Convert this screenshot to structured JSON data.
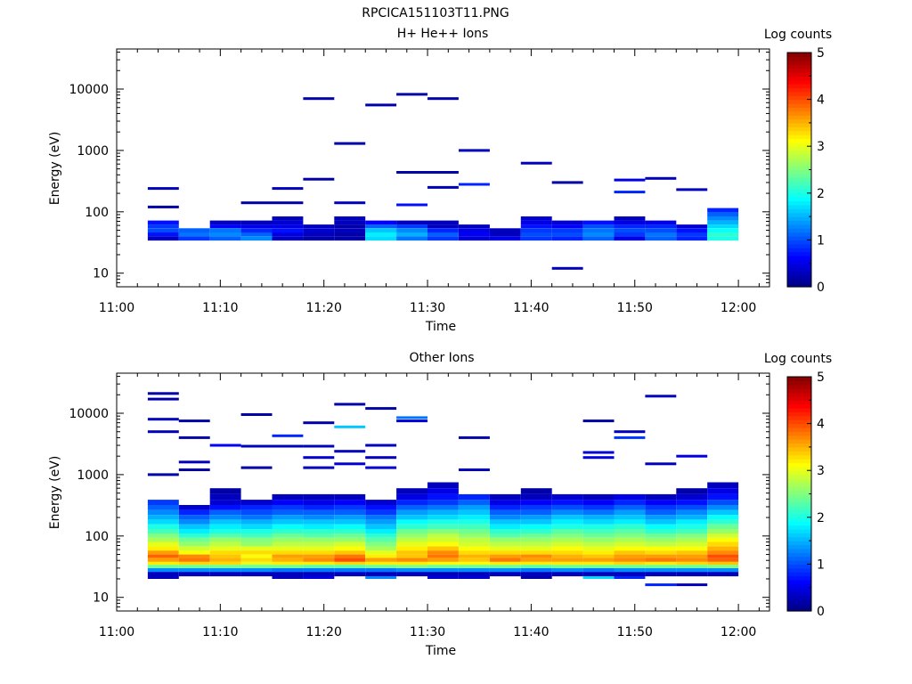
{
  "figure": {
    "title": "RPCICA151103T11.PNG"
  },
  "chart_data": [
    {
      "type": "heatmap",
      "title": "H+ He++ Ions",
      "xlabel": "Time",
      "ylabel": "Energy (eV)",
      "xlim": [
        "11:00",
        "12:03"
      ],
      "x_ticks": [
        "11:00",
        "11:10",
        "11:20",
        "11:30",
        "11:40",
        "11:50",
        "12:00"
      ],
      "y_scale": "log",
      "ylim": [
        6,
        45000
      ],
      "y_ticks": [
        "10",
        "100",
        "1000",
        "10000"
      ],
      "colorbar": {
        "label": "Log counts",
        "range": [
          0,
          5
        ],
        "ticks": [
          "0",
          "1",
          "2",
          "3",
          "4",
          "5"
        ]
      },
      "time_bins": [
        "11:03",
        "11:06",
        "11:09",
        "11:12",
        "11:15",
        "11:18",
        "11:21",
        "11:24",
        "11:27",
        "11:30",
        "11:33",
        "11:36",
        "11:39",
        "11:42",
        "11:45",
        "11:48",
        "11:51",
        "11:54",
        "11:57"
      ],
      "energy_bin_ranges": [
        [
          34,
          40
        ],
        [
          40,
          46
        ],
        [
          46,
          54
        ],
        [
          54,
          62
        ],
        [
          62,
          72
        ],
        [
          72,
          84
        ],
        [
          84,
          98
        ],
        [
          98,
          115
        ],
        [
          115,
          135
        ],
        [
          135,
          160
        ]
      ],
      "profiles": [
        [
          0.3,
          0.7,
          1.0,
          0.9,
          0.7
        ],
        [
          0.9,
          1.2,
          1.1
        ],
        [
          1.1,
          1.3,
          1.2,
          0.6,
          0.3
        ],
        [
          1.3,
          1.1,
          0.8,
          0.5,
          0.3
        ],
        [
          0.3,
          0.5,
          0.7,
          0.5,
          0.4,
          0.3
        ],
        [
          0.2,
          0.3,
          0.4,
          0.3
        ],
        [
          0.2,
          0.2,
          0.3,
          0.2,
          0.3,
          0.3
        ],
        [
          1.7,
          1.8,
          1.6,
          1.1,
          0.6
        ],
        [
          1.2,
          1.5,
          1.3,
          0.9,
          0.3
        ],
        [
          0.9,
          1.1,
          0.8,
          0.3,
          0.3
        ],
        [
          0.4,
          0.6,
          0.5,
          0.3
        ],
        [
          0.5,
          0.3,
          0.3
        ],
        [
          0.9,
          1.0,
          0.9,
          0.7,
          0.5,
          0.4
        ],
        [
          0.8,
          1.0,
          0.9,
          0.6,
          0.4
        ],
        [
          1.1,
          1.3,
          1.2,
          1.0,
          0.7
        ],
        [
          0.5,
          0.9,
          1.0,
          0.8,
          0.5,
          0.3
        ],
        [
          1.1,
          1.2,
          1.0,
          0.8,
          0.5
        ],
        [
          0.8,
          0.9,
          0.7,
          0.4
        ],
        [
          2.0,
          2.1,
          1.9,
          1.7,
          1.5,
          1.3,
          1.1,
          0.8
        ]
      ],
      "sparse_counts": [
        {
          "t": "11:03",
          "e": 240,
          "v": 0.3
        },
        {
          "t": "11:03",
          "e": 120,
          "v": 0.2
        },
        {
          "t": "11:12",
          "e": 140,
          "v": 0.2
        },
        {
          "t": "11:15",
          "e": 240,
          "v": 0.3
        },
        {
          "t": "11:15",
          "e": 140,
          "v": 0.2
        },
        {
          "t": "11:18",
          "e": 7000,
          "v": 0.2
        },
        {
          "t": "11:18",
          "e": 340,
          "v": 0.2
        },
        {
          "t": "11:21",
          "e": 1300,
          "v": 0.2
        },
        {
          "t": "11:21",
          "e": 140,
          "v": 0.3
        },
        {
          "t": "11:24",
          "e": 5500,
          "v": 0.2
        },
        {
          "t": "11:27",
          "e": 8200,
          "v": 0.2
        },
        {
          "t": "11:27",
          "e": 440,
          "v": 0.2
        },
        {
          "t": "11:27",
          "e": 130,
          "v": 0.7
        },
        {
          "t": "11:30",
          "e": 7000,
          "v": 0.2
        },
        {
          "t": "11:30",
          "e": 440,
          "v": 0.2
        },
        {
          "t": "11:30",
          "e": 250,
          "v": 0.3
        },
        {
          "t": "11:33",
          "e": 1000,
          "v": 0.3
        },
        {
          "t": "11:33",
          "e": 280,
          "v": 0.8
        },
        {
          "t": "11:39",
          "e": 620,
          "v": 0.3
        },
        {
          "t": "11:42",
          "e": 300,
          "v": 0.2
        },
        {
          "t": "11:42",
          "e": 12,
          "v": 0.3
        },
        {
          "t": "11:48",
          "e": 330,
          "v": 0.5
        },
        {
          "t": "11:48",
          "e": 210,
          "v": 0.8
        },
        {
          "t": "11:51",
          "e": 350,
          "v": 0.3
        },
        {
          "t": "11:54",
          "e": 230,
          "v": 0.3
        }
      ]
    },
    {
      "type": "heatmap",
      "title": "Other Ions",
      "xlabel": "Time",
      "ylabel": "Energy (eV)",
      "xlim": [
        "11:00",
        "12:03"
      ],
      "x_ticks": [
        "11:00",
        "11:10",
        "11:20",
        "11:30",
        "11:40",
        "11:50",
        "12:00"
      ],
      "y_scale": "log",
      "ylim": [
        6,
        45000
      ],
      "y_ticks": [
        "10",
        "100",
        "1000",
        "10000"
      ],
      "colorbar": {
        "label": "Log counts",
        "range": [
          0,
          5
        ],
        "ticks": [
          "0",
          "1",
          "2",
          "3",
          "4",
          "5"
        ]
      },
      "time_bins": [
        "11:03",
        "11:06",
        "11:09",
        "11:12",
        "11:15",
        "11:18",
        "11:21",
        "11:24",
        "11:27",
        "11:30",
        "11:33",
        "11:36",
        "11:39",
        "11:42",
        "11:45",
        "11:48",
        "11:51",
        "11:54",
        "11:57"
      ],
      "energy_bin_ranges": [
        [
          22,
          26
        ],
        [
          26,
          30
        ],
        [
          30,
          34
        ],
        [
          34,
          38
        ],
        [
          38,
          44
        ],
        [
          44,
          50
        ],
        [
          50,
          58
        ],
        [
          58,
          68
        ],
        [
          68,
          80
        ],
        [
          80,
          94
        ],
        [
          94,
          110
        ],
        [
          110,
          130
        ],
        [
          130,
          155
        ],
        [
          155,
          185
        ],
        [
          185,
          220
        ],
        [
          220,
          265
        ],
        [
          265,
          320
        ],
        [
          320,
          390
        ],
        [
          390,
          480
        ],
        [
          480,
          600
        ],
        [
          600,
          750
        ],
        [
          750,
          950
        ]
      ],
      "profiles": [
        [
          0.3,
          1.3,
          2.4,
          3.2,
          3.6,
          3.9,
          3.6,
          3.2,
          3.0,
          2.7,
          2.5,
          2.2,
          2.0,
          1.7,
          1.5,
          1.3,
          1.1,
          0.9
        ],
        [
          0.3,
          1.3,
          2.4,
          3.3,
          3.8,
          3.7,
          3.1,
          2.9,
          2.6,
          2.4,
          2.1,
          1.8,
          1.6,
          1.3,
          1.1,
          0.8,
          0.4
        ],
        [
          0.3,
          1.3,
          2.4,
          3.3,
          3.5,
          3.4,
          3.3,
          3.0,
          2.8,
          2.6,
          2.3,
          2.0,
          1.8,
          1.6,
          1.3,
          1.1,
          0.7,
          0.4,
          0.3,
          0.2
        ],
        [
          0.3,
          1.3,
          2.4,
          3.0,
          3.3,
          3.1,
          3.3,
          3.0,
          2.6,
          2.5,
          2.2,
          2.0,
          1.7,
          1.5,
          1.2,
          1.0,
          0.8,
          0.4
        ],
        [
          0.3,
          1.2,
          2.4,
          3.2,
          3.5,
          3.6,
          3.3,
          3.0,
          2.8,
          2.6,
          2.4,
          2.1,
          1.9,
          1.6,
          1.4,
          1.1,
          0.9,
          0.6,
          0.3
        ],
        [
          0.3,
          1.2,
          2.3,
          3.2,
          3.7,
          3.6,
          3.3,
          3.0,
          2.8,
          2.6,
          2.3,
          2.1,
          1.8,
          1.6,
          1.3,
          1.1,
          0.8,
          0.5,
          0.3
        ],
        [
          0.3,
          1.2,
          2.3,
          3.3,
          4.0,
          3.8,
          3.4,
          3.1,
          2.9,
          2.6,
          2.4,
          2.1,
          1.9,
          1.6,
          1.4,
          1.1,
          0.9,
          0.6,
          0.3
        ],
        [
          0.3,
          1.2,
          2.4,
          3.2,
          3.6,
          3.2,
          3.0,
          2.7,
          2.5,
          2.3,
          2.1,
          1.8,
          1.6,
          1.4,
          1.2,
          0.9,
          0.7,
          0.4
        ],
        [
          0.3,
          1.3,
          2.5,
          3.2,
          3.7,
          3.4,
          3.4,
          3.2,
          3.0,
          2.8,
          2.6,
          2.4,
          2.1,
          1.9,
          1.6,
          1.4,
          1.1,
          0.8,
          0.5,
          0.3
        ],
        [
          0.3,
          1.3,
          2.4,
          3.1,
          3.6,
          3.8,
          3.7,
          3.4,
          3.1,
          2.9,
          2.8,
          2.5,
          2.2,
          2.0,
          1.7,
          1.5,
          1.2,
          0.9,
          0.7,
          0.5,
          0.3
        ],
        [
          0.3,
          1.3,
          2.4,
          3.1,
          3.4,
          3.5,
          3.3,
          3.1,
          2.9,
          2.8,
          2.6,
          2.4,
          2.2,
          2.0,
          1.8,
          1.6,
          1.4,
          1.1,
          0.8
        ],
        [
          0.3,
          1.3,
          2.4,
          3.2,
          3.8,
          3.6,
          3.3,
          3.0,
          2.8,
          2.6,
          2.3,
          2.1,
          1.8,
          1.6,
          1.3,
          1.1,
          0.8,
          0.5,
          0.3
        ],
        [
          0.3,
          1.2,
          2.3,
          3.2,
          3.6,
          3.7,
          3.3,
          3.0,
          2.8,
          2.6,
          2.4,
          2.1,
          1.9,
          1.6,
          1.4,
          1.1,
          0.9,
          0.6,
          0.3,
          0.2
        ],
        [
          0.3,
          1.3,
          2.4,
          3.2,
          3.6,
          3.5,
          3.3,
          3.1,
          2.9,
          2.7,
          2.5,
          2.3,
          2.0,
          1.8,
          1.6,
          1.3,
          1.0,
          0.7,
          0.4
        ],
        [
          0.3,
          1.2,
          2.4,
          3.2,
          3.6,
          3.4,
          3.2,
          3.0,
          2.8,
          2.6,
          2.4,
          2.2,
          2.0,
          1.7,
          1.5,
          1.2,
          0.9,
          0.6,
          0.3
        ],
        [
          0.3,
          1.3,
          2.4,
          3.3,
          3.7,
          3.6,
          3.4,
          3.1,
          2.9,
          2.7,
          2.5,
          2.3,
          2.1,
          1.8,
          1.6,
          1.4,
          1.1,
          0.8,
          0.5
        ],
        [
          0.3,
          1.3,
          2.4,
          3.2,
          3.8,
          3.6,
          3.3,
          3.1,
          2.8,
          2.6,
          2.4,
          2.1,
          1.9,
          1.6,
          1.4,
          1.1,
          0.9,
          0.6,
          0.3
        ],
        [
          0.3,
          1.3,
          2.4,
          3.3,
          3.7,
          3.6,
          3.4,
          3.1,
          2.9,
          2.7,
          2.5,
          2.2,
          2.0,
          1.8,
          1.5,
          1.3,
          1.0,
          0.7,
          0.4,
          0.2
        ],
        [
          0.3,
          1.3,
          2.5,
          3.4,
          3.9,
          4.0,
          3.7,
          3.5,
          3.3,
          3.1,
          2.9,
          2.6,
          2.4,
          2.1,
          1.9,
          1.6,
          1.3,
          1.0,
          0.7,
          0.5,
          0.3
        ]
      ],
      "sparse_counts": [
        {
          "t": "11:03",
          "e": 21000,
          "v": 0.2
        },
        {
          "t": "11:03",
          "e": 17000,
          "v": 0.2
        },
        {
          "t": "11:03",
          "e": 8000,
          "v": 0.3
        },
        {
          "t": "11:03",
          "e": 5000,
          "v": 0.3
        },
        {
          "t": "11:03",
          "e": 1000,
          "v": 0.2
        },
        {
          "t": "11:03",
          "e": 21,
          "v": 0.3
        },
        {
          "t": "11:06",
          "e": 7500,
          "v": 0.2
        },
        {
          "t": "11:06",
          "e": 4000,
          "v": 0.2
        },
        {
          "t": "11:06",
          "e": 1600,
          "v": 0.3
        },
        {
          "t": "11:06",
          "e": 1200,
          "v": 0.2
        },
        {
          "t": "11:09",
          "e": 3000,
          "v": 0.6
        },
        {
          "t": "11:12",
          "e": 9500,
          "v": 0.2
        },
        {
          "t": "11:12",
          "e": 2900,
          "v": 0.3
        },
        {
          "t": "11:12",
          "e": 1300,
          "v": 0.2
        },
        {
          "t": "11:15",
          "e": 4300,
          "v": 0.8
        },
        {
          "t": "11:15",
          "e": 2900,
          "v": 0.3
        },
        {
          "t": "11:15",
          "e": 21,
          "v": 0.3
        },
        {
          "t": "11:18",
          "e": 7000,
          "v": 0.2
        },
        {
          "t": "11:18",
          "e": 2900,
          "v": 0.3
        },
        {
          "t": "11:18",
          "e": 1900,
          "v": 0.4
        },
        {
          "t": "11:18",
          "e": 1300,
          "v": 0.3
        },
        {
          "t": "11:18",
          "e": 21,
          "v": 0.5
        },
        {
          "t": "11:21",
          "e": 14000,
          "v": 0.2
        },
        {
          "t": "11:21",
          "e": 6000,
          "v": 1.6
        },
        {
          "t": "11:21",
          "e": 2400,
          "v": 0.3
        },
        {
          "t": "11:21",
          "e": 1500,
          "v": 0.4
        },
        {
          "t": "11:24",
          "e": 12000,
          "v": 0.2
        },
        {
          "t": "11:24",
          "e": 3000,
          "v": 0.3
        },
        {
          "t": "11:24",
          "e": 1900,
          "v": 0.3
        },
        {
          "t": "11:24",
          "e": 1300,
          "v": 0.4
        },
        {
          "t": "11:24",
          "e": 21,
          "v": 1.3
        },
        {
          "t": "11:27",
          "e": 8500,
          "v": 1.2
        },
        {
          "t": "11:27",
          "e": 7500,
          "v": 0.4
        },
        {
          "t": "11:30",
          "e": 21,
          "v": 0.4
        },
        {
          "t": "11:33",
          "e": 4000,
          "v": 0.2
        },
        {
          "t": "11:33",
          "e": 1200,
          "v": 0.3
        },
        {
          "t": "11:33",
          "e": 21,
          "v": 0.4
        },
        {
          "t": "11:39",
          "e": 21,
          "v": 0.2
        },
        {
          "t": "11:45",
          "e": 7500,
          "v": 0.2
        },
        {
          "t": "11:45",
          "e": 2300,
          "v": 0.4
        },
        {
          "t": "11:45",
          "e": 1900,
          "v": 0.5
        },
        {
          "t": "11:45",
          "e": 21,
          "v": 1.7
        },
        {
          "t": "11:48",
          "e": 5000,
          "v": 0.3
        },
        {
          "t": "11:48",
          "e": 4000,
          "v": 0.9
        },
        {
          "t": "11:48",
          "e": 21,
          "v": 0.8
        },
        {
          "t": "11:51",
          "e": 19000,
          "v": 0.3
        },
        {
          "t": "11:51",
          "e": 1500,
          "v": 0.3
        },
        {
          "t": "11:51",
          "e": 16,
          "v": 0.8
        },
        {
          "t": "11:54",
          "e": 2000,
          "v": 0.5
        },
        {
          "t": "11:54",
          "e": 16,
          "v": 0.3
        }
      ]
    }
  ]
}
